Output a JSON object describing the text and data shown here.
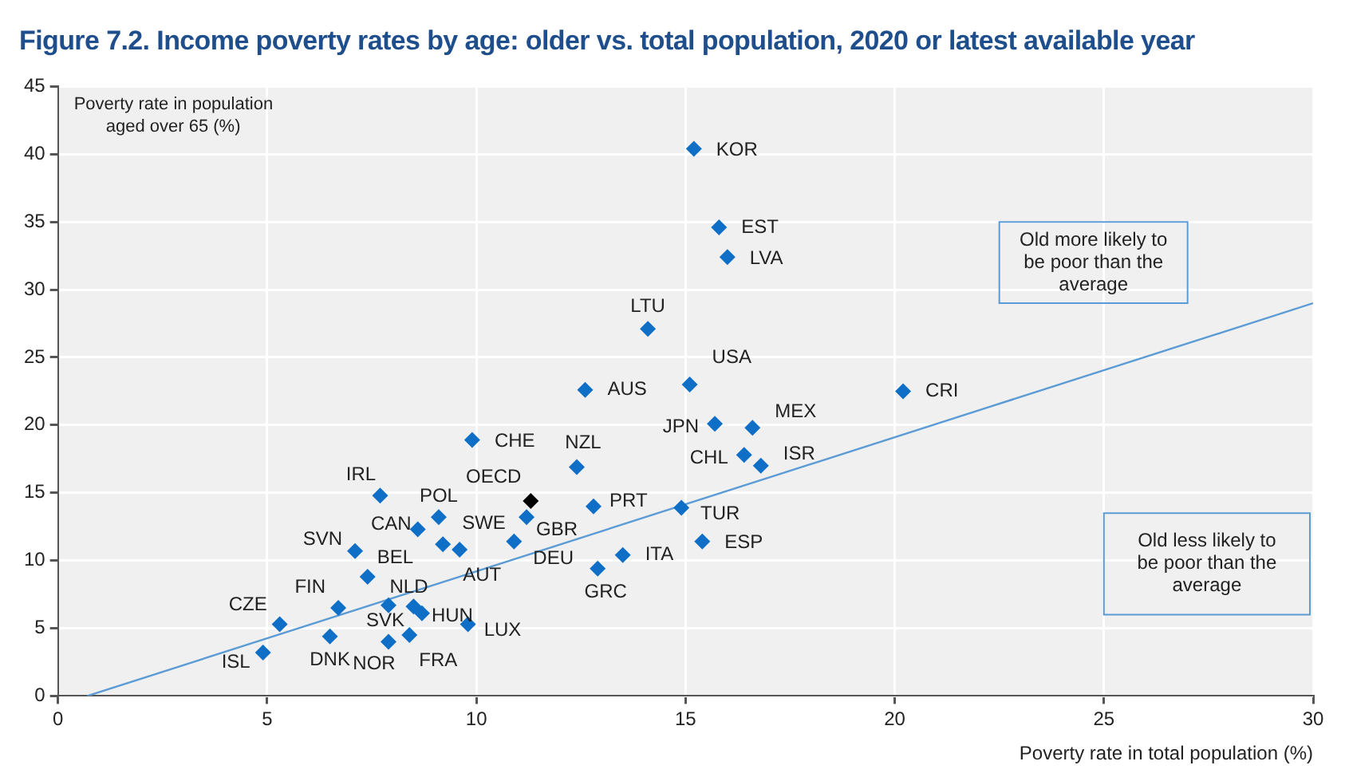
{
  "chart_data": {
    "type": "scatter",
    "title": "Figure 7.2. Income poverty rates by age: older vs. total population, 2020 or latest available year",
    "xlabel": "Poverty rate in total population (%)",
    "ylabel": "Poverty rate in population aged over 65 (%)",
    "annotations": [
      "Old more likely to be poor than the average",
      "Old less likely to be poor than the average"
    ],
    "xlim": [
      0,
      30
    ],
    "xticks": [
      0,
      5,
      10,
      15,
      20,
      25,
      30
    ],
    "ylim": [
      0,
      45
    ],
    "yticks": [
      0,
      5,
      10,
      15,
      20,
      25,
      30,
      35,
      40,
      45
    ],
    "grid": true,
    "legend": false,
    "marker": "diamond",
    "series": [
      {
        "color": "#0f6fc6",
        "x": [
          15.2,
          15.8,
          16.0,
          14.1,
          15.1,
          12.6,
          20.2,
          15.7,
          16.6,
          16.4,
          16.8,
          12.4,
          9.9,
          11.3,
          12.8,
          14.9,
          15.4,
          11.2,
          13.5,
          12.9,
          10.9,
          9.6,
          9.2,
          9.1,
          8.6,
          7.7,
          7.1,
          7.4,
          6.7,
          5.3,
          4.9,
          6.5,
          7.9,
          7.9,
          8.4,
          8.5,
          8.7,
          9.8
        ],
        "values": [
          40.4,
          34.6,
          32.4,
          27.1,
          23.0,
          22.6,
          22.5,
          20.1,
          19.8,
          17.8,
          17.0,
          16.9,
          18.9,
          14.4,
          14.0,
          13.9,
          11.4,
          13.2,
          10.4,
          9.4,
          11.4,
          10.8,
          11.2,
          13.2,
          12.3,
          14.8,
          10.7,
          8.8,
          6.5,
          5.3,
          3.2,
          4.4,
          6.7,
          4.0,
          4.5,
          6.6,
          6.1,
          5.3
        ],
        "colors": [
          null,
          null,
          null,
          null,
          null,
          null,
          null,
          null,
          null,
          null,
          null,
          null,
          null,
          "#000000",
          null,
          null,
          null,
          null,
          null,
          null,
          null,
          null,
          null,
          null,
          null,
          null,
          null,
          null,
          null,
          null,
          null,
          null,
          null,
          null,
          null,
          null,
          null,
          null
        ],
        "value_labels": [
          "KOR",
          "EST",
          "LVA",
          "LTU",
          "USA",
          "AUS",
          "CRI",
          "JPN",
          "MEX",
          "CHL",
          "ISR",
          "NZL",
          "CHE",
          "OECD",
          "PRT",
          "TUR",
          "ESP",
          "GBR",
          "ITA",
          "GRC",
          "DEU",
          "AUT",
          "SWE",
          "POL",
          "CAN",
          "IRL",
          "SVN",
          "BEL",
          "FIN",
          "CZE",
          "ISL",
          "DNK",
          "SVK",
          "NOR",
          "FRA",
          "NLD",
          "HUN",
          "LUX"
        ]
      },
      {
        "type": "line",
        "marker": "none",
        "color": "#5b9bd5",
        "x": [
          0.7,
          30
        ],
        "values": [
          0,
          29
        ]
      }
    ]
  }
}
